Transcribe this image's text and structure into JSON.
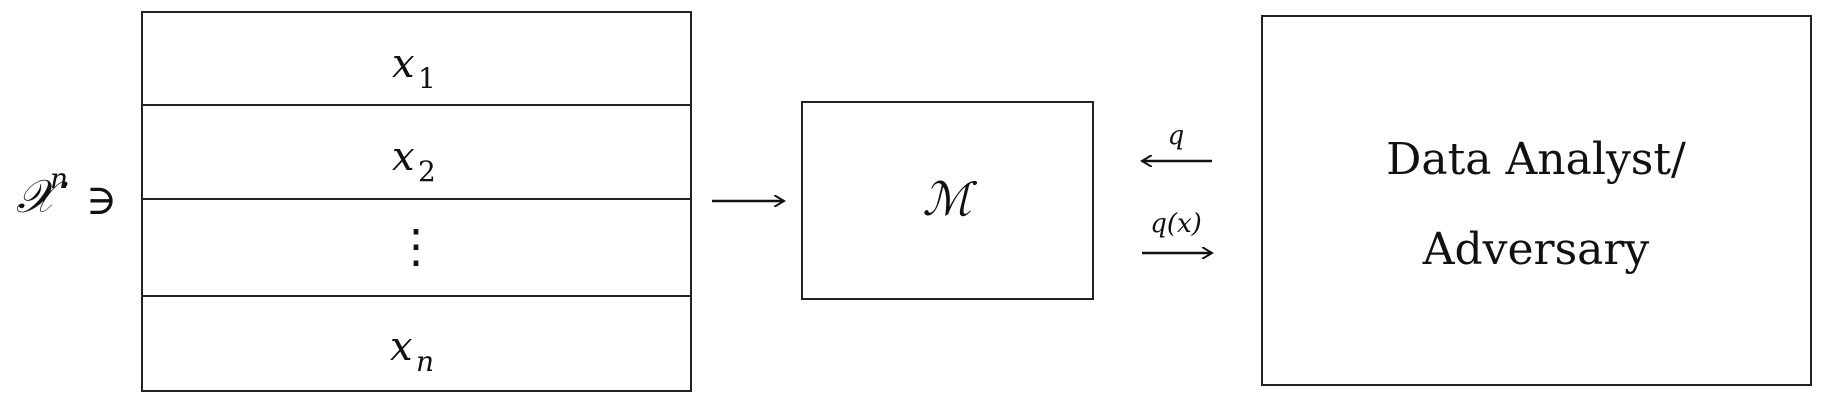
{
  "dataset": {
    "domain_symbol": "𝒳",
    "domain_exponent": "n",
    "member_symbol": "∋",
    "rows": [
      {
        "var": "x",
        "sub": "1"
      },
      {
        "var": "x",
        "sub": "2"
      },
      {
        "var": "⋮",
        "sub": ""
      },
      {
        "var": "x",
        "sub": "n"
      }
    ]
  },
  "mechanism": {
    "label": "ℳ"
  },
  "queries": {
    "query_label": "q",
    "answer_label": "q(x)"
  },
  "analyst": {
    "line1": "Data Analyst/",
    "line2": "Adversary"
  }
}
